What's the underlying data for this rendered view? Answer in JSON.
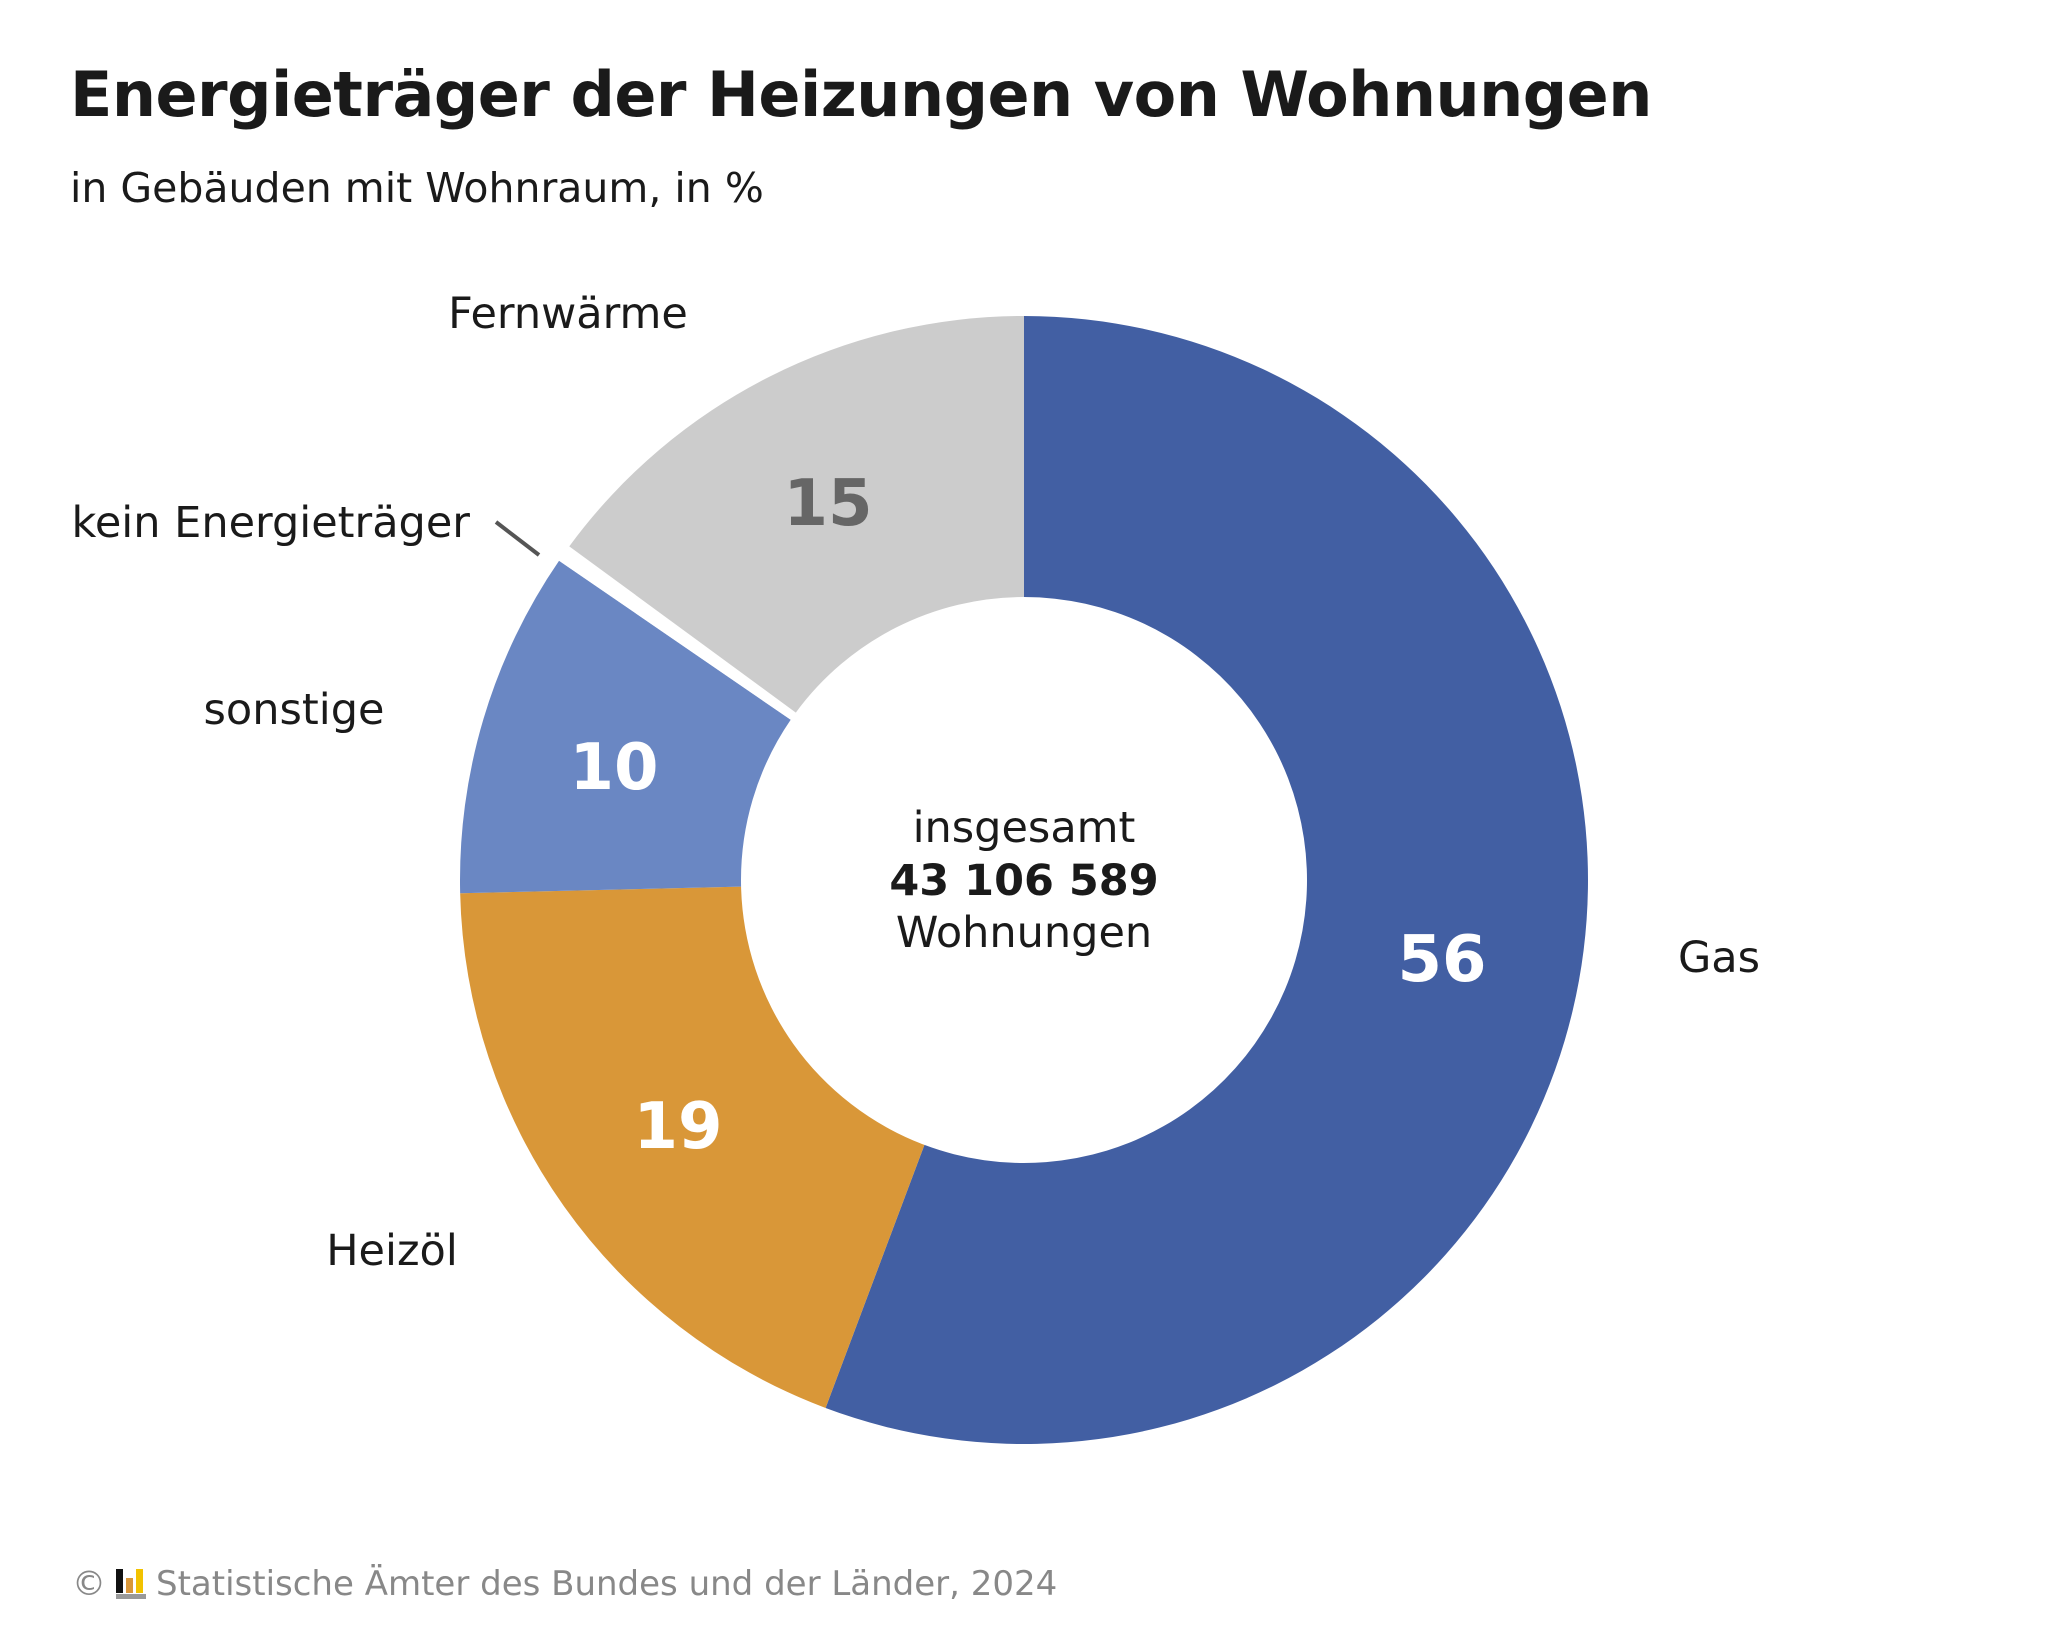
{
  "title": "Energieträger der Heizungen von Wohnungen",
  "subtitle": "in Gebäuden mit Wohnraum, in %",
  "footer": {
    "copyright": "©",
    "logo_icon": "statistik-logo-icon",
    "text": "Statistische Ämter des Bundes und der Länder, 2024"
  },
  "center": {
    "line1": "insgesamt",
    "total": "43 106 589",
    "line3": "Wohnungen"
  },
  "chart_data": {
    "type": "pie",
    "variant": "donut",
    "title": "Energieträger der Heizungen von Wohnungen",
    "subtitle": "in Gebäuden mit Wohnraum, in %",
    "start": "top, clockwise",
    "slices": [
      {
        "label": "Gas",
        "value": 56,
        "value_label": "56",
        "color": "#425fa3",
        "value_color": "#ffffff"
      },
      {
        "label": "Heizöl",
        "value": 19,
        "value_label": "19",
        "color": "#d99738",
        "value_color": "#ffffff"
      },
      {
        "label": "sonstige",
        "value": 10,
        "value_label": "10",
        "color": "#6a87c3",
        "value_color": "#ffffff"
      },
      {
        "label": "kein Energieträger",
        "value": 0.5,
        "value_label": "",
        "color": "#ffffff",
        "value_color": "#ffffff"
      },
      {
        "label": "Fernwärme",
        "value": 15,
        "value_label": "15",
        "color": "#cccccc",
        "value_color": "#666666"
      }
    ]
  }
}
